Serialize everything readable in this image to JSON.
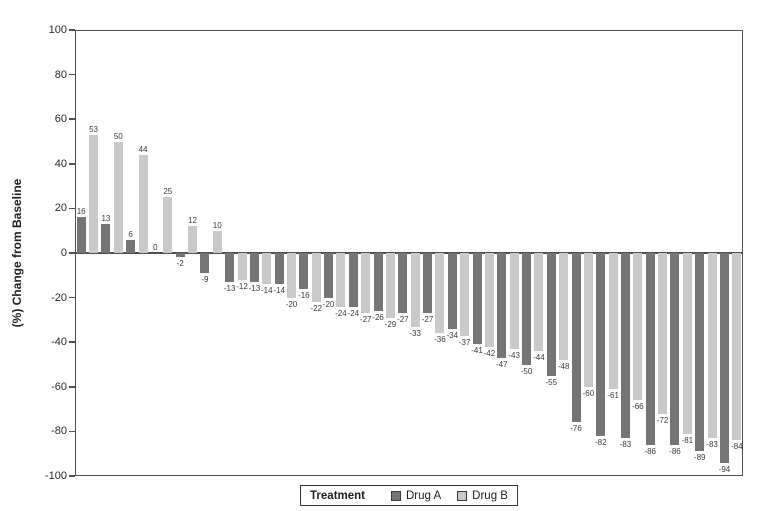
{
  "chart_data": {
    "type": "bar",
    "title": "",
    "xlabel": "",
    "ylabel": "(%) Change from Baseline",
    "ylim": [
      -100,
      100
    ],
    "yticks": [
      100,
      80,
      60,
      40,
      20,
      0,
      -20,
      -40,
      -60,
      -80,
      -100
    ],
    "grid": false,
    "bar_order": "interleaved_by_series_starting_with_drug_a",
    "series": [
      {
        "name": "Drug A",
        "color": "#757575",
        "values": [
          16,
          13,
          6,
          0,
          -2,
          -9,
          -13,
          -13,
          -14,
          -16,
          -20,
          -24,
          -26,
          -27,
          -27,
          -34,
          -41,
          -47,
          -50,
          -55,
          -76,
          -82,
          -83,
          -86,
          -86,
          -89,
          -94
        ]
      },
      {
        "name": "Drug B",
        "color": "#c9c9c9",
        "values": [
          53,
          50,
          44,
          25,
          12,
          10,
          -12,
          -14,
          -20,
          -22,
          -24,
          -27,
          -29,
          -33,
          -36,
          -37,
          -42,
          -43,
          -44,
          -48,
          -60,
          -61,
          -66,
          -72,
          -81,
          -83,
          -84
        ]
      }
    ],
    "legend": {
      "position": "bottom-center",
      "title": "Treatment",
      "entries": [
        {
          "label": "Drug A",
          "color": "#757575"
        },
        {
          "label": "Drug B",
          "color": "#c9c9c9"
        }
      ]
    },
    "annotations": "each bar is labeled with its value above positive bars and below negative bars"
  },
  "colors": {
    "frame": "#4f4f4f",
    "zero_line": "#4f4f4f",
    "bar_value_label": "#3a3a3a",
    "tick_text": "#2b2b2b"
  }
}
